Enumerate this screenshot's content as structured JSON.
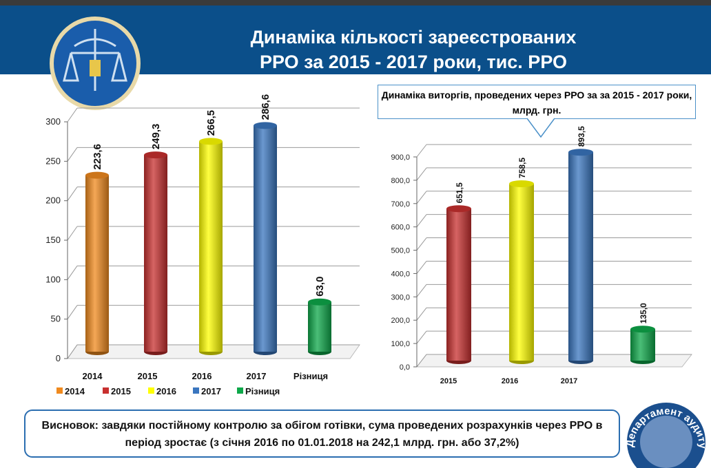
{
  "header": {
    "title": "Динаміка кількості зареєстрованих\nРРО за 2015 - 2017 роки, тис. РРО"
  },
  "logo": {
    "stamp_text": "Департамент аудиту"
  },
  "chart_data": [
    {
      "type": "bar",
      "title": "",
      "categories": [
        "2014",
        "2015",
        "2016",
        "2017",
        "Різниця"
      ],
      "values": [
        223.6,
        249.3,
        266.5,
        286.6,
        63.0
      ],
      "labels": [
        "223,6",
        "249,3",
        "266,5",
        "286,6",
        "63,0"
      ],
      "colors": [
        "#f08a1e",
        "#c8302f",
        "#ffff00",
        "#3a76bf",
        "#0ea84a"
      ],
      "ylim": [
        0,
        300
      ],
      "yticks": [
        "0",
        "50",
        "100",
        "150",
        "200",
        "250",
        "300"
      ],
      "legend": [
        "2014",
        "2015",
        "2016",
        "2017",
        "Різниця"
      ],
      "legend_position": "bottom"
    },
    {
      "type": "bar",
      "title": "Динаміка виторгів, проведених через РРО за  за  2015 - 2017 роки, млрд. грн.",
      "categories": [
        "2015",
        "2016",
        "2017",
        ""
      ],
      "values": [
        651.5,
        758.5,
        893.5,
        135.0
      ],
      "labels": [
        "651,5",
        "758,5",
        "893,5",
        "135,0"
      ],
      "colors": [
        "#c8302f",
        "#ffff00",
        "#3a76bf",
        "#0ea84a"
      ],
      "ylim": [
        0,
        900
      ],
      "yticks": [
        "0,0",
        "100,0",
        "200,0",
        "300,0",
        "400,0",
        "500,0",
        "600,0",
        "700,0",
        "800,0",
        "900,0"
      ]
    }
  ],
  "conclusion": "Висновок: завдяки постійному контролю за обігом готівки, сума проведених розрахунків через РРО в період зростає (з січня 2016 по 01.01.2018 на 242,1 млрд. грн. або 37,2%)"
}
